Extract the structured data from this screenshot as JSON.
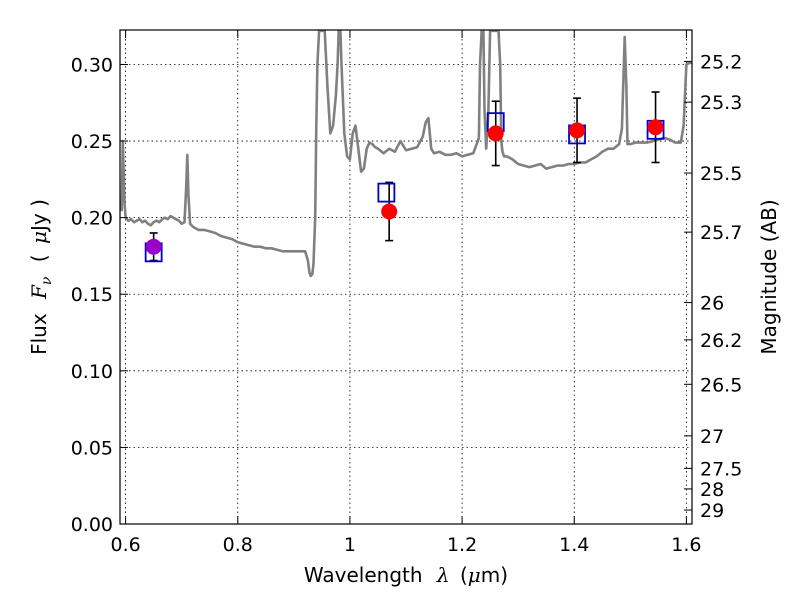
{
  "chart_data": {
    "type": "scatter",
    "xlabel_prefix": "Wavelength",
    "xlabel_symbol": "λ",
    "xlabel_unit_open": "(",
    "xlabel_unit_symbol": "μ",
    "xlabel_unit_rest": "m)",
    "ylabel_prefix": "Flux",
    "ylabel_symbol": "F",
    "ylabel_subscript": "ν",
    "ylabel_unit_open": "(",
    "ylabel_unit_symbol": "μ",
    "ylabel_unit_rest": "Jy )",
    "y2label": "Magnitude (AB)",
    "xlim": [
      0.59,
      1.61
    ],
    "ylim": [
      0.0,
      0.3225
    ],
    "x_ticks": [
      {
        "value": 0.6,
        "label": "0.6"
      },
      {
        "value": 0.8,
        "label": "0.8"
      },
      {
        "value": 1.0,
        "label": "1"
      },
      {
        "value": 1.2,
        "label": "1.2"
      },
      {
        "value": 1.4,
        "label": "1.4"
      },
      {
        "value": 1.6,
        "label": "1.6"
      }
    ],
    "y_ticks": [
      {
        "value": 0.0,
        "label": "0.00"
      },
      {
        "value": 0.05,
        "label": "0.05"
      },
      {
        "value": 0.1,
        "label": "0.10"
      },
      {
        "value": 0.15,
        "label": "0.15"
      },
      {
        "value": 0.2,
        "label": "0.20"
      },
      {
        "value": 0.25,
        "label": "0.25"
      },
      {
        "value": 0.3,
        "label": "0.30"
      }
    ],
    "y2_ticks": [
      {
        "value": 25.2,
        "label": "25.2"
      },
      {
        "value": 25.3,
        "label": "25.3"
      },
      {
        "value": 25.5,
        "label": "25.5"
      },
      {
        "value": 25.7,
        "label": "25.7"
      },
      {
        "value": 26.0,
        "label": "26"
      },
      {
        "value": 26.2,
        "label": "26.2"
      },
      {
        "value": 26.5,
        "label": "26.5"
      },
      {
        "value": 27.0,
        "label": "27"
      },
      {
        "value": 27.5,
        "label": "27.5"
      },
      {
        "value": 28.0,
        "label": "28"
      },
      {
        "value": 29.0,
        "label": "29"
      }
    ],
    "grid": true,
    "colors": {
      "spectrum": "#808080",
      "observed": "#ff0000",
      "observed_short": "#9900cc",
      "model_box": "#0000cc",
      "errorbar": "#000000"
    },
    "series": [
      {
        "kind": "model_spectrum",
        "style": "line",
        "x": [
          0.59,
          0.593,
          0.595,
          0.598,
          0.6,
          0.605,
          0.61,
          0.615,
          0.62,
          0.625,
          0.63,
          0.635,
          0.64,
          0.645,
          0.65,
          0.655,
          0.66,
          0.665,
          0.67,
          0.675,
          0.68,
          0.685,
          0.69,
          0.695,
          0.7,
          0.705,
          0.708,
          0.71,
          0.712,
          0.715,
          0.72,
          0.725,
          0.73,
          0.74,
          0.75,
          0.76,
          0.77,
          0.78,
          0.79,
          0.8,
          0.81,
          0.82,
          0.83,
          0.84,
          0.85,
          0.86,
          0.87,
          0.88,
          0.89,
          0.9,
          0.91,
          0.92,
          0.925,
          0.928,
          0.93,
          0.933,
          0.935,
          0.938,
          0.94,
          0.942,
          0.945,
          0.95,
          0.955,
          0.96,
          0.965,
          0.97,
          0.975,
          0.978,
          0.98,
          0.983,
          0.985,
          0.99,
          0.995,
          1.0,
          1.005,
          1.01,
          1.015,
          1.02,
          1.025,
          1.03,
          1.035,
          1.04,
          1.045,
          1.05,
          1.06,
          1.07,
          1.08,
          1.09,
          1.1,
          1.11,
          1.12,
          1.13,
          1.135,
          1.14,
          1.145,
          1.15,
          1.16,
          1.17,
          1.18,
          1.19,
          1.2,
          1.21,
          1.22,
          1.23,
          1.232,
          1.235,
          1.238,
          1.24,
          1.243,
          1.247,
          1.25,
          1.26,
          1.265,
          1.268,
          1.27,
          1.272,
          1.275,
          1.28,
          1.29,
          1.3,
          1.31,
          1.32,
          1.33,
          1.34,
          1.35,
          1.36,
          1.37,
          1.38,
          1.39,
          1.4,
          1.41,
          1.42,
          1.43,
          1.44,
          1.45,
          1.46,
          1.47,
          1.48,
          1.485,
          1.49,
          1.493,
          1.495,
          1.5,
          1.51,
          1.52,
          1.53,
          1.54,
          1.55,
          1.56,
          1.57,
          1.58,
          1.59,
          1.595,
          1.6,
          1.605,
          1.61
        ],
        "y": [
          0.205,
          0.205,
          0.25,
          0.21,
          0.2,
          0.198,
          0.199,
          0.197,
          0.198,
          0.199,
          0.197,
          0.198,
          0.196,
          0.195,
          0.197,
          0.198,
          0.197,
          0.199,
          0.2,
          0.199,
          0.201,
          0.2,
          0.199,
          0.198,
          0.196,
          0.197,
          0.22,
          0.241,
          0.215,
          0.196,
          0.194,
          0.193,
          0.192,
          0.192,
          0.191,
          0.19,
          0.188,
          0.187,
          0.186,
          0.184,
          0.183,
          0.182,
          0.181,
          0.181,
          0.18,
          0.18,
          0.179,
          0.178,
          0.178,
          0.178,
          0.178,
          0.178,
          0.172,
          0.164,
          0.162,
          0.163,
          0.17,
          0.2,
          0.26,
          0.3,
          0.322,
          0.322,
          0.322,
          0.285,
          0.255,
          0.26,
          0.28,
          0.3,
          0.322,
          0.322,
          0.3,
          0.255,
          0.24,
          0.238,
          0.255,
          0.26,
          0.245,
          0.23,
          0.232,
          0.245,
          0.249,
          0.248,
          0.246,
          0.245,
          0.242,
          0.245,
          0.243,
          0.25,
          0.244,
          0.245,
          0.246,
          0.253,
          0.262,
          0.265,
          0.245,
          0.242,
          0.243,
          0.241,
          0.241,
          0.242,
          0.24,
          0.241,
          0.242,
          0.252,
          0.3,
          0.322,
          0.322,
          0.27,
          0.245,
          0.27,
          0.322,
          0.322,
          0.322,
          0.3,
          0.25,
          0.243,
          0.24,
          0.24,
          0.238,
          0.235,
          0.234,
          0.233,
          0.234,
          0.235,
          0.232,
          0.233,
          0.234,
          0.234,
          0.235,
          0.235,
          0.236,
          0.236,
          0.238,
          0.24,
          0.243,
          0.245,
          0.245,
          0.248,
          0.258,
          0.318,
          0.285,
          0.248,
          0.248,
          0.249,
          0.249,
          0.249,
          0.25,
          0.251,
          0.252,
          0.251,
          0.249,
          0.249,
          0.26,
          0.3,
          0.301,
          0.301
        ]
      },
      {
        "kind": "observed",
        "style": "marker-circle",
        "x": [
          0.65,
          1.07,
          1.26,
          1.405,
          1.545
        ],
        "y": [
          0.181,
          0.204,
          0.255,
          0.257,
          0.259
        ],
        "yerr": [
          0.009,
          0.019,
          0.021,
          0.021,
          0.023
        ]
      },
      {
        "kind": "model_bandpass",
        "style": "marker-square",
        "x": [
          0.65,
          1.065,
          1.26,
          1.405,
          1.545
        ],
        "y": [
          0.178,
          0.217,
          0.263,
          0.255,
          0.258
        ]
      }
    ]
  }
}
